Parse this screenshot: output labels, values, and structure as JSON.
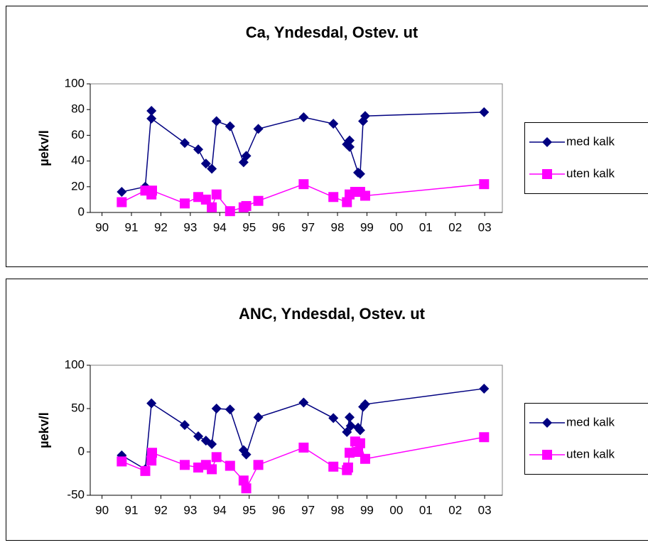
{
  "chart_data": [
    {
      "type": "line",
      "title": "Ca, Yndesdal, Ostev. ut",
      "y_label": "µekv/l",
      "legend": "right",
      "xlim": [
        89.6,
        103.6
      ],
      "xticks": [
        90,
        91,
        92,
        93,
        94,
        95,
        96,
        97,
        98,
        99,
        {
          "value": 100,
          "label": "00"
        },
        {
          "value": 101,
          "label": "01"
        },
        {
          "value": 102,
          "label": "02"
        },
        {
          "value": 103,
          "label": "03"
        }
      ],
      "ylim": [
        0,
        100
      ],
      "yticks": [
        0,
        20,
        40,
        60,
        80,
        100
      ],
      "series": [
        {
          "name": "med kalk",
          "color": "#000080",
          "marker": "diamond",
          "x": [
            90.67,
            91.47,
            91.68,
            91.68,
            92.81,
            93.27,
            93.53,
            93.73,
            93.89,
            94.35,
            94.81,
            94.9,
            95.31,
            96.85,
            97.86,
            98.32,
            98.41,
            98.41,
            98.7,
            98.77,
            98.87,
            98.94,
            102.98
          ],
          "values": [
            16,
            20,
            79,
            73,
            54,
            49,
            38,
            34,
            71,
            67,
            39,
            44,
            65,
            74,
            69,
            53,
            56,
            51,
            31,
            30,
            71,
            75,
            78
          ]
        },
        {
          "name": "uten kalk",
          "color": "#ff00ff",
          "marker": "square",
          "x": [
            90.67,
            91.47,
            91.68,
            91.7,
            92.81,
            93.27,
            93.53,
            93.73,
            93.89,
            94.35,
            94.81,
            94.9,
            95.31,
            96.85,
            97.86,
            98.32,
            98.41,
            98.6,
            98.77,
            98.94,
            102.98
          ],
          "values": [
            8,
            17,
            14,
            17,
            7,
            12,
            10,
            4,
            14,
            1,
            4,
            5,
            9,
            22,
            12,
            8,
            14,
            16,
            16,
            13,
            22
          ]
        }
      ]
    },
    {
      "type": "line",
      "title": "ANC, Yndesdal, Ostev. ut",
      "y_label": "µekv/l",
      "legend": "right",
      "xlim": [
        89.6,
        103.6
      ],
      "xticks": [
        90,
        91,
        92,
        93,
        94,
        95,
        96,
        97,
        98,
        99,
        {
          "value": 100,
          "label": "00"
        },
        {
          "value": 101,
          "label": "01"
        },
        {
          "value": 102,
          "label": "02"
        },
        {
          "value": 103,
          "label": "03"
        }
      ],
      "ylim": [
        -50,
        100
      ],
      "yticks": [
        -50,
        0,
        50,
        100
      ],
      "series": [
        {
          "name": "med kalk",
          "color": "#000080",
          "marker": "diamond",
          "x": [
            90.67,
            91.47,
            91.68,
            92.81,
            93.27,
            93.53,
            93.73,
            93.89,
            94.35,
            94.81,
            94.9,
            95.31,
            96.85,
            97.86,
            98.32,
            98.41,
            98.45,
            98.7,
            98.77,
            98.87,
            98.94,
            102.98
          ],
          "values": [
            -4,
            -20,
            56,
            31,
            18,
            13,
            9,
            50,
            49,
            2,
            -3,
            40,
            57,
            39,
            23,
            40,
            30,
            28,
            25,
            52,
            55,
            73
          ]
        },
        {
          "name": "uten kalk",
          "color": "#ff00ff",
          "marker": "square",
          "x": [
            90.67,
            91.47,
            91.68,
            91.7,
            92.81,
            93.27,
            93.53,
            93.73,
            93.89,
            94.35,
            94.81,
            94.9,
            95.31,
            96.85,
            97.86,
            98.32,
            98.36,
            98.41,
            98.6,
            98.7,
            98.77,
            98.94,
            102.98
          ],
          "values": [
            -11,
            -22,
            -10,
            -1,
            -15,
            -18,
            -15,
            -20,
            -6,
            -16,
            -33,
            -42,
            -15,
            5,
            -17,
            -21,
            -18,
            -1,
            12,
            0,
            10,
            -8,
            17
          ]
        }
      ]
    }
  ]
}
